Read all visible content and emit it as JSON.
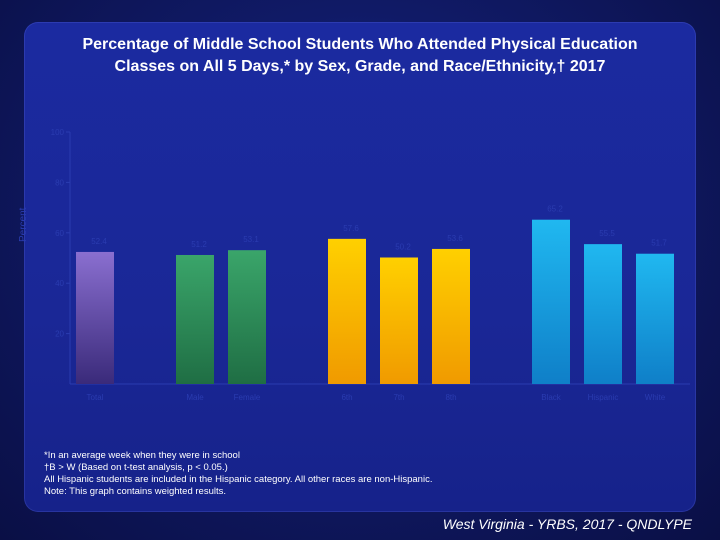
{
  "title_line1": "Percentage of Middle School Students Who Attended Physical Education",
  "title_line2": "Classes on All 5 Days,* by Sex, Grade, and Race/Ethnicity,† 2017",
  "colors": {
    "total": "#6a4fb0",
    "sex": "#2e8b57",
    "grade": "#f0b800",
    "race": "#1aa3e0",
    "axis_text": "#2a3cb0"
  },
  "chart_data": {
    "type": "bar",
    "ylabel": "Percent",
    "ylim": [
      0,
      100
    ],
    "yticks": [
      0,
      20,
      40,
      60,
      80,
      100
    ],
    "groups": [
      {
        "key": "total",
        "bars": [
          {
            "label": "Total",
            "value": 52.4
          }
        ]
      },
      {
        "key": "sex",
        "bars": [
          {
            "label": "Male",
            "value": 51.2
          },
          {
            "label": "Female",
            "value": 53.1
          }
        ]
      },
      {
        "key": "grade",
        "bars": [
          {
            "label": "6th",
            "value": 57.6
          },
          {
            "label": "7th",
            "value": 50.2
          },
          {
            "label": "8th",
            "value": 53.6
          }
        ]
      },
      {
        "key": "race",
        "bars": [
          {
            "label": "Black",
            "value": 65.2
          },
          {
            "label": "Hispanic",
            "value": 55.5
          },
          {
            "label": "White",
            "value": 51.7
          }
        ]
      }
    ]
  },
  "footnotes": [
    "*In an average week when they were in school",
    "†B > W (Based on t-test analysis, p < 0.05.)",
    "All Hispanic students are included in the Hispanic category.  All other races are non-Hispanic.",
    "Note: This graph contains weighted results."
  ],
  "source": "West Virginia - YRBS, 2017 - QNDLYPE"
}
